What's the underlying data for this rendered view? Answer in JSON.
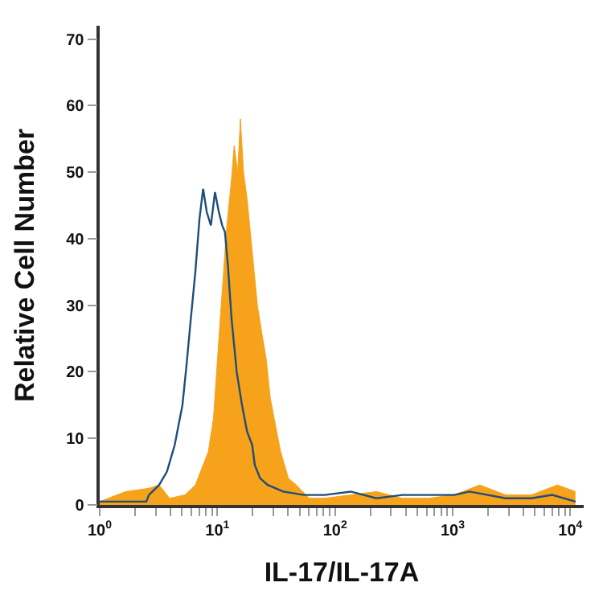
{
  "chart_data": {
    "type": "area",
    "xlabel": "IL-17/IL-17A",
    "ylabel": "Relative Cell Number",
    "log": "x",
    "xlim": [
      1,
      13000
    ],
    "ylim": [
      0,
      72
    ],
    "xticks": [
      {
        "value": 1,
        "label": "10$^{0}$"
      },
      {
        "value": 2,
        "label": null
      },
      {
        "value": 3,
        "label": null
      },
      {
        "value": 4,
        "label": null
      },
      {
        "value": 5,
        "label": null
      },
      {
        "value": 6,
        "label": null
      },
      {
        "value": 7,
        "label": null
      },
      {
        "value": 8,
        "label": null
      },
      {
        "value": 9,
        "label": null
      },
      {
        "value": 10,
        "label": "10$^{1}$"
      },
      {
        "value": 20,
        "label": null
      },
      {
        "value": 30,
        "label": null
      },
      {
        "value": 40,
        "label": null
      },
      {
        "value": 50,
        "label": null
      },
      {
        "value": 60,
        "label": null
      },
      {
        "value": 70,
        "label": null
      },
      {
        "value": 80,
        "label": null
      },
      {
        "value": 90,
        "label": null
      },
      {
        "value": 100,
        "label": "10$^{2}$"
      },
      {
        "value": 200,
        "label": null
      },
      {
        "value": 300,
        "label": null
      },
      {
        "value": 400,
        "label": null
      },
      {
        "value": 500,
        "label": null
      },
      {
        "value": 600,
        "label": null
      },
      {
        "value": 700,
        "label": null
      },
      {
        "value": 800,
        "label": null
      },
      {
        "value": 900,
        "label": null
      },
      {
        "value": 1000,
        "label": "10$^{3}$"
      },
      {
        "value": 2000,
        "label": null
      },
      {
        "value": 3000,
        "label": null
      },
      {
        "value": 4000,
        "label": null
      },
      {
        "value": 5000,
        "label": null
      },
      {
        "value": 6000,
        "label": null
      },
      {
        "value": 7000,
        "label": null
      },
      {
        "value": 8000,
        "label": null
      },
      {
        "value": 9000,
        "label": null
      },
      {
        "value": 10000,
        "label": "10$^{4}$"
      }
    ],
    "yticks": [
      0,
      10,
      20,
      30,
      40,
      50,
      60,
      70
    ],
    "series": [
      {
        "color": "#f7a21b",
        "x": [
          1,
          1.66,
          2.62,
          3.2,
          3.92,
          5.31,
          6.5,
          7.57,
          8.38,
          9.27,
          10.3,
          11.3,
          11.9,
          13.2,
          13.9,
          14.9,
          15.7,
          16.7,
          17.9,
          19.8,
          21.9,
          24.3,
          26,
          28.2,
          31.2,
          34.5,
          40.2,
          46.8,
          60.3,
          81.7,
          136,
          225,
          373,
          618,
          1030,
          1700,
          2820,
          4680,
          7770,
          11070
        ],
        "values": [
          0.5,
          2,
          2.5,
          3,
          1,
          1.5,
          3,
          6,
          8,
          13,
          25,
          35,
          41,
          49,
          54,
          50,
          58,
          50,
          46,
          38,
          30,
          25,
          22,
          16,
          12,
          8,
          4,
          3,
          1,
          1,
          1.5,
          2,
          1,
          1,
          1.5,
          3,
          1.5,
          1.5,
          3,
          2
        ]
      },
      {
        "type": "line",
        "color": "#1f4e79",
        "x": [
          1,
          2.49,
          2.62,
          3.2,
          3.73,
          4.34,
          5.05,
          5.47,
          5.88,
          6.5,
          7.05,
          7.57,
          8.13,
          8.81,
          9.55,
          10.3,
          11.0,
          11.6,
          12.3,
          13.2,
          14.6,
          16.2,
          17.9,
          19.8,
          20.8,
          23.1,
          26.8,
          36.3,
          54.5,
          81.7,
          136,
          225,
          373,
          618,
          1030,
          1390,
          2820,
          4680,
          7020,
          11070
        ],
        "values": [
          0.5,
          0.5,
          1.5,
          3,
          5,
          9,
          15,
          21,
          27,
          35,
          43,
          47.5,
          44,
          42,
          47,
          44,
          42,
          41,
          36,
          28,
          20,
          15,
          11,
          9,
          6,
          4,
          3,
          2,
          1.5,
          1.5,
          2,
          1,
          1.5,
          1.5,
          1.5,
          2,
          1,
          1,
          1.5,
          0.5
        ]
      }
    ]
  }
}
